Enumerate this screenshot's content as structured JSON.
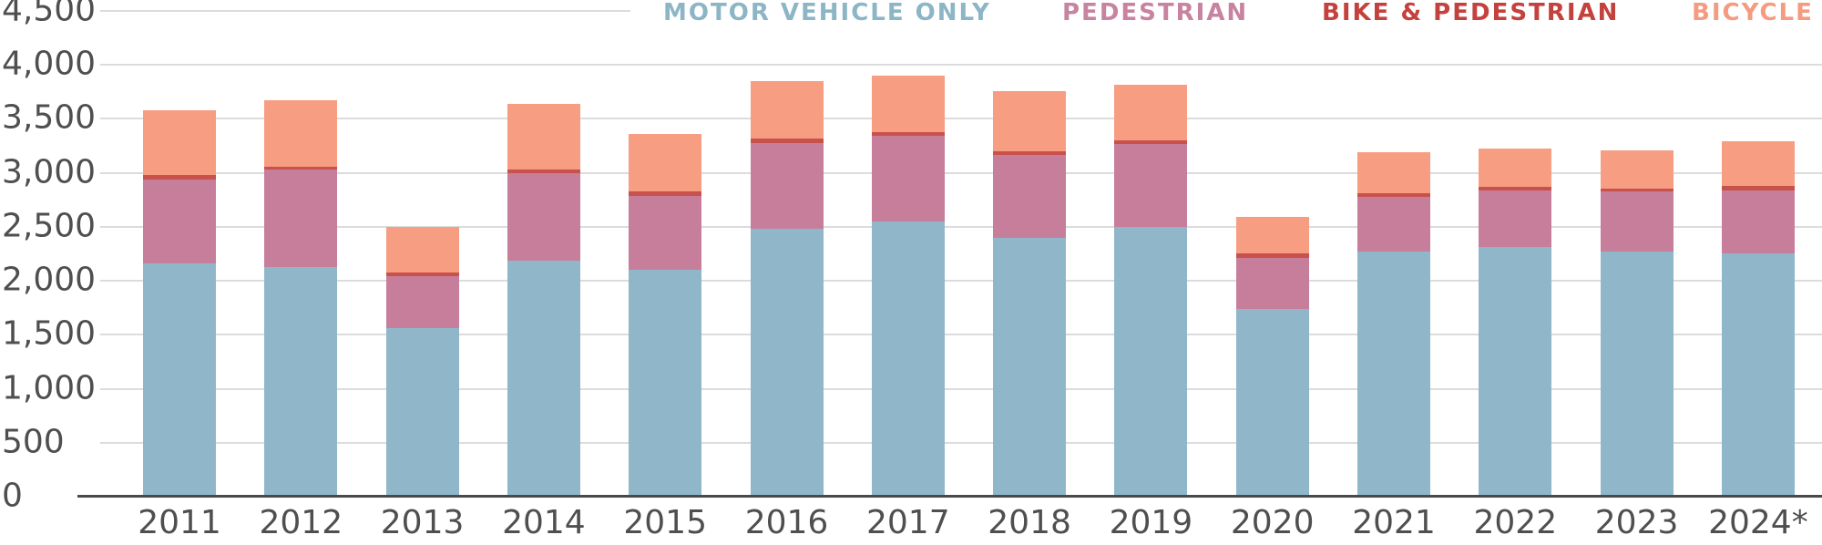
{
  "chart_data": {
    "type": "bar",
    "stacked": true,
    "title": "",
    "xlabel": "",
    "ylabel": "",
    "ylim": [
      0,
      4500
    ],
    "grid": true,
    "legend_position": "top",
    "y_ticks": [
      "0",
      "500",
      "1,000",
      "1,500",
      "2,000",
      "2,500",
      "3,000",
      "3,500",
      "4,000",
      "4,500"
    ],
    "y_tick_values": [
      0,
      500,
      1000,
      1500,
      2000,
      2500,
      3000,
      3500,
      4000,
      4500
    ],
    "categories": [
      "2011",
      "2012",
      "2013",
      "2014",
      "2015",
      "2016",
      "2017",
      "2018",
      "2019",
      "2020",
      "2021",
      "2022",
      "2023",
      "2024*"
    ],
    "series": [
      {
        "name": "MOTOR VEHICLE ONLY",
        "color": "#8fb7c9",
        "values": [
          2160,
          2130,
          1565,
          2190,
          2100,
          2480,
          2550,
          2395,
          2495,
          1740,
          2270,
          2310,
          2275,
          2255
        ]
      },
      {
        "name": "PEDESTRIAN",
        "color": "#c77e9b",
        "values": [
          780,
          900,
          480,
          810,
          690,
          800,
          795,
          775,
          775,
          475,
          505,
          530,
          550,
          585
        ]
      },
      {
        "name": "BIKE & PEDESTRIAN",
        "color": "#c9514c",
        "values": [
          40,
          30,
          35,
          30,
          35,
          35,
          35,
          30,
          35,
          40,
          35,
          30,
          25,
          35
        ]
      },
      {
        "name": "BICYCLE",
        "color": "#f69d82",
        "values": [
          600,
          610,
          420,
          605,
          535,
          535,
          525,
          555,
          515,
          335,
          380,
          355,
          355,
          415
        ]
      }
    ],
    "totals": [
      3580,
      3670,
      2500,
      3635,
      3360,
      3850,
      3905,
      3755,
      3820,
      2590,
      3190,
      3225,
      3205,
      3290
    ]
  },
  "legend": {
    "items": [
      {
        "label": "MOTOR VEHICLE ONLY",
        "color": "#8cb5c6"
      },
      {
        "label": "PEDESTRIAN",
        "color": "#c883a0"
      },
      {
        "label": "BIKE & PEDESTRIAN",
        "color": "#c4423d"
      },
      {
        "label": "BICYCLE",
        "color": "#f49b80"
      }
    ]
  },
  "colors": {
    "gridline": "#dcdcdc",
    "axis_line": "#4a4a4a",
    "tick_text": "#4f4f4f",
    "background": "#ffffff"
  }
}
